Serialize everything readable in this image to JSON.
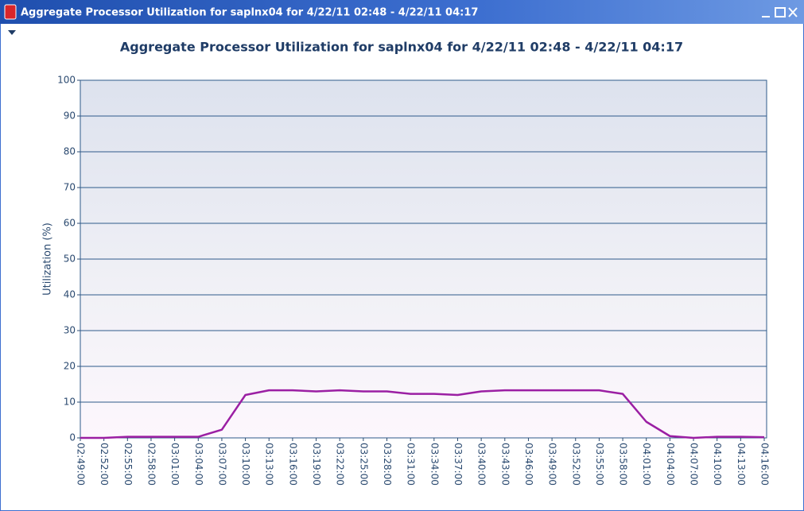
{
  "window": {
    "title": "Aggregate Processor Utilization for saplnx04 for  4/22/11 02:48 - 4/22/11 04:17"
  },
  "chart_data": {
    "type": "line",
    "title": "Aggregate Processor Utilization for saplnx04 for 4/22/11 02:48 - 4/22/11 04:17",
    "y_label": "Utilization (%)",
    "categories": [
      "02:49:00",
      "02:52:00",
      "02:55:00",
      "02:58:00",
      "03:01:00",
      "03:04:00",
      "03:07:00",
      "03:10:00",
      "03:13:00",
      "03:16:00",
      "03:19:00",
      "03:22:00",
      "03:25:00",
      "03:28:00",
      "03:31:00",
      "03:34:00",
      "03:37:00",
      "03:40:00",
      "03:43:00",
      "03:46:00",
      "03:49:00",
      "03:52:00",
      "03:55:00",
      "03:58:00",
      "04:01:00",
      "04:04:00",
      "04:07:00",
      "04:10:00",
      "04:13:00",
      "04:16:00"
    ],
    "values": [
      0,
      0,
      0.3,
      0.3,
      0.3,
      0.3,
      2.3,
      12,
      13.3,
      13.3,
      13,
      13.3,
      13,
      13,
      12.3,
      12.3,
      12,
      13,
      13.3,
      13.3,
      13.3,
      13.3,
      13.3,
      12.3,
      4.5,
      0.5,
      0,
      0.3,
      0.3,
      0.2
    ],
    "color": "#9b1fa3",
    "ylim": [
      0,
      100
    ],
    "yticks": [
      0,
      10,
      20,
      30,
      40,
      50,
      60,
      70,
      80,
      90,
      100
    ],
    "grid": true
  }
}
